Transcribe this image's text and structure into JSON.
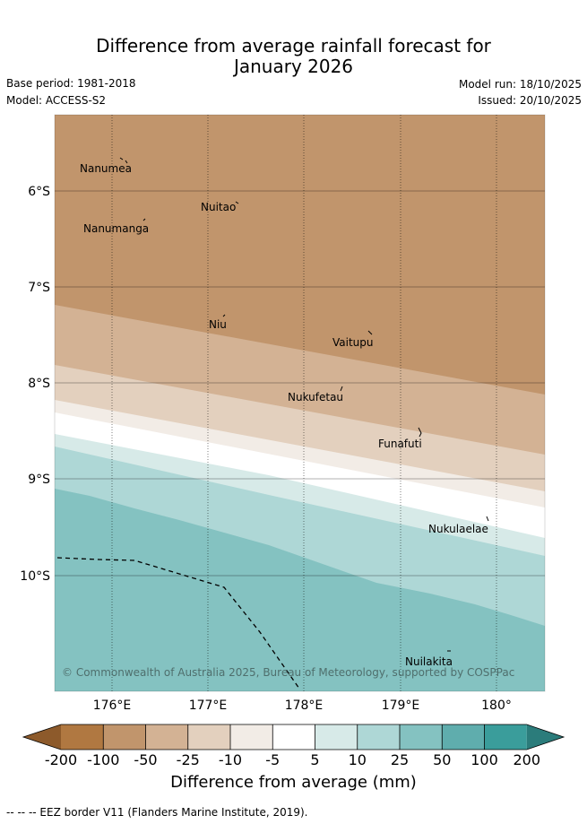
{
  "title_line1": "Difference from average rainfall forecast for",
  "title_line2": "January 2026",
  "base_period": "Base period: 1981-2018",
  "model": "Model: ACCESS-S2",
  "model_run": "Model run: 18/10/2025",
  "issued": "Issued: 20/10/2025",
  "map": {
    "lat_labels": [
      "6°S",
      "7°S",
      "8°S",
      "9°S",
      "10°S"
    ],
    "lon_labels": [
      "176°E",
      "177°E",
      "178°E",
      "179°E",
      "180°"
    ],
    "places": [
      "Nanumea",
      "Nuitao",
      "Nanumanga",
      "Niu",
      "Vaitupu",
      "Nukufetau",
      "Funafuti",
      "Nukulaelae",
      "Nuilakita"
    ],
    "copyright": "© Commonwealth of Australia 2025, Bureau of Meteorology, supported by COSPPac"
  },
  "colorbar": {
    "labels": [
      "-200",
      "-100",
      "-50",
      "-25",
      "-10",
      "-5",
      "5",
      "10",
      "25",
      "50",
      "100",
      "200"
    ],
    "colors": [
      "#8d5a2b",
      "#b07841",
      "#c1956c",
      "#d3b294",
      "#e3d0be",
      "#f2ece6",
      "#ffffff",
      "#d7eae8",
      "#aed7d6",
      "#84c2c1",
      "#5fadad",
      "#3a9d9b",
      "#2b7c7b"
    ],
    "title": "Difference from average (mm)"
  },
  "eez_note": "-- -- -- EEZ border V11 (Flanders Marine Institute, 2019)."
}
